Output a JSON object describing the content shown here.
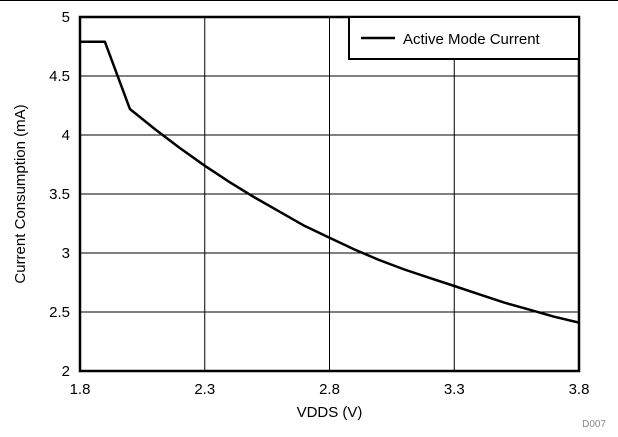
{
  "chart_data": {
    "type": "line",
    "title": "",
    "xlabel": "VDDS (V)",
    "ylabel": "Current Consumption (mA)",
    "xlim": [
      1.8,
      3.8
    ],
    "ylim": [
      2,
      5
    ],
    "xticks": [
      "1.8",
      "2.3",
      "2.8",
      "3.3",
      "3.8"
    ],
    "yticks": [
      "2",
      "2.5",
      "3",
      "3.5",
      "4",
      "4.5",
      "5"
    ],
    "grid": true,
    "legend_position": "top-right",
    "series": [
      {
        "name": "Active Mode Current",
        "x": [
          1.8,
          1.9,
          2.0,
          2.1,
          2.2,
          2.3,
          2.4,
          2.5,
          2.6,
          2.7,
          2.8,
          2.9,
          3.0,
          3.1,
          3.2,
          3.3,
          3.4,
          3.5,
          3.6,
          3.7,
          3.8
        ],
        "y": [
          4.79,
          4.79,
          4.22,
          4.05,
          3.89,
          3.74,
          3.6,
          3.47,
          3.35,
          3.23,
          3.13,
          3.03,
          2.94,
          2.86,
          2.79,
          2.72,
          2.65,
          2.58,
          2.52,
          2.46,
          2.41
        ]
      }
    ],
    "figure_code": "D007"
  },
  "colors": {
    "line": "#000000",
    "grid": "#000000",
    "background": "#ffffff"
  }
}
